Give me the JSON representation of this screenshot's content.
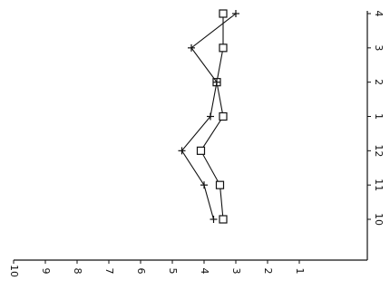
{
  "chart_data": {
    "type": "line",
    "orientation": "rotated-90-clockwise",
    "x": [
      "10",
      "11",
      "12",
      "1",
      "2",
      "3",
      "4"
    ],
    "xtick_labels": [
      "10",
      "11",
      "12",
      "1",
      "2",
      "3",
      "4"
    ],
    "ylim": [
      0,
      10
    ],
    "yticks": [
      1,
      2,
      3,
      4,
      5,
      6,
      7,
      8,
      9,
      10
    ],
    "ytick_labels": [
      "1",
      "2",
      "3",
      "4",
      "5",
      "6",
      "7",
      "8",
      "9",
      "10"
    ],
    "series": [
      {
        "marker": "square",
        "values": [
          3.4,
          3.5,
          4.1,
          3.4,
          3.6,
          3.4,
          3.4
        ]
      },
      {
        "marker": "plus",
        "values": [
          3.7,
          4.0,
          4.7,
          3.8,
          3.6,
          4.4,
          3.0
        ]
      }
    ],
    "grid": false,
    "legend": "none",
    "title": "",
    "xlabel": "",
    "ylabel": ""
  }
}
